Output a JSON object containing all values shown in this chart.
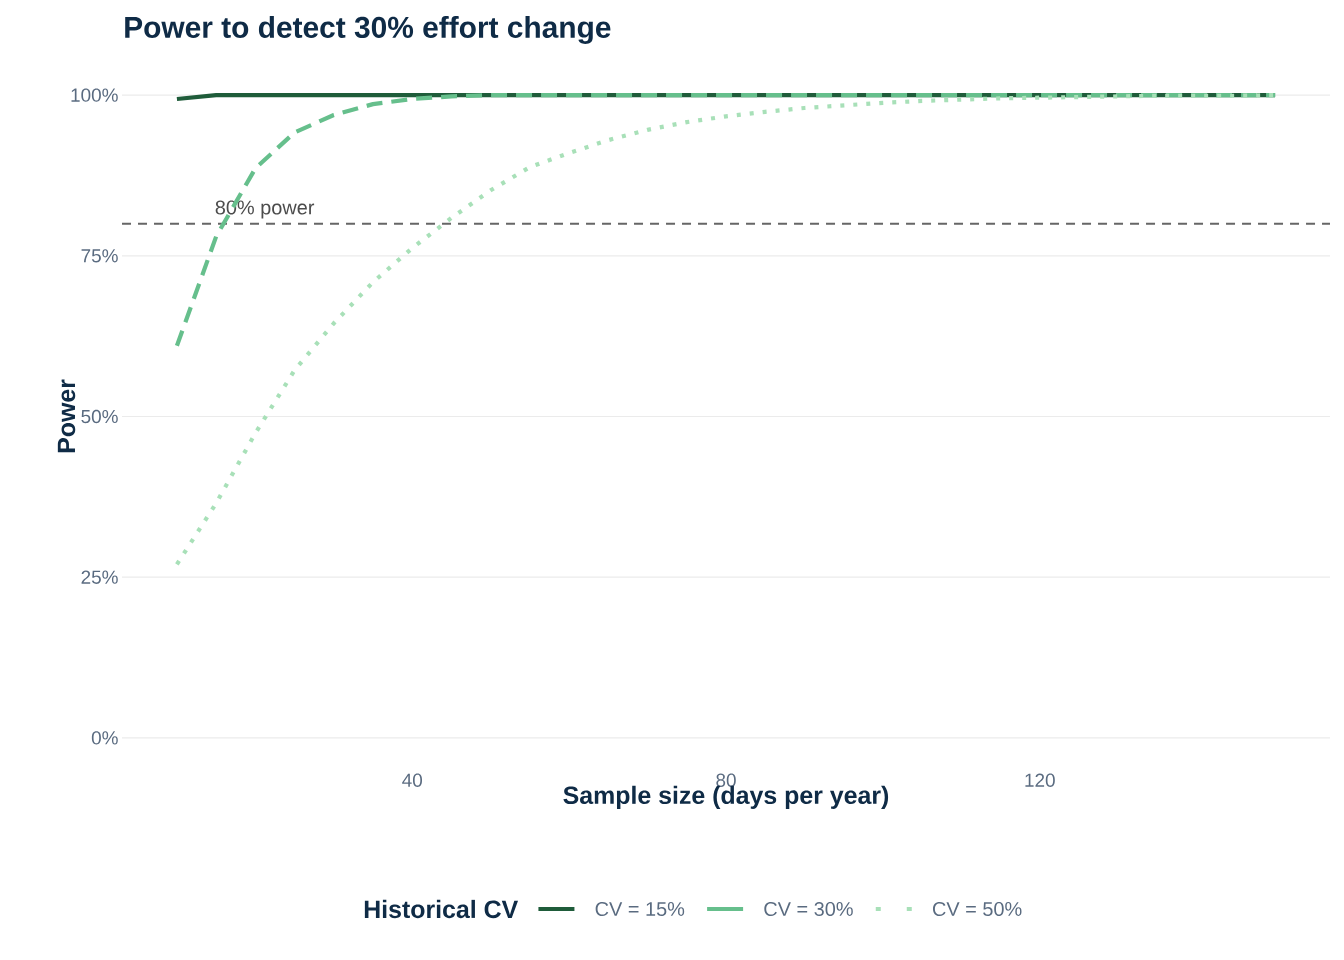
{
  "chart_data": {
    "type": "line",
    "title": "Power to detect 30% effort change",
    "xlabel": "Sample size (days per year)",
    "ylabel": "Power",
    "legend_title": "Historical CV",
    "x": [
      10,
      15,
      20,
      25,
      30,
      35,
      40,
      45,
      50,
      55,
      60,
      65,
      70,
      75,
      80,
      85,
      90,
      95,
      100,
      105,
      110,
      115,
      120,
      125,
      130,
      135,
      140,
      145,
      150
    ],
    "series": [
      {
        "name": "CV = 15%",
        "color": "#1f5c3a",
        "line_style": "solid",
        "values": [
          99.4,
          100,
          100,
          100,
          100,
          100,
          100,
          100,
          100,
          100,
          100,
          100,
          100,
          100,
          100,
          100,
          100,
          100,
          100,
          100,
          100,
          100,
          100,
          100,
          100,
          100,
          100,
          100,
          100
        ]
      },
      {
        "name": "CV = 30%",
        "color": "#66bf8c",
        "line_style": "dashed",
        "values": [
          61,
          78,
          88.6,
          94.2,
          96.9,
          98.6,
          99.4,
          99.8,
          100,
          100,
          100,
          100,
          100,
          100,
          100,
          100,
          100,
          100,
          100,
          100,
          100,
          100,
          100,
          100,
          100,
          100,
          100,
          100,
          100
        ]
      },
      {
        "name": "CV = 50%",
        "color": "#a8e0b8",
        "line_style": "dotted",
        "values": [
          27,
          36.5,
          47.4,
          57.2,
          64.5,
          70.9,
          76.2,
          80.9,
          85.2,
          88.8,
          91,
          93,
          94.6,
          95.8,
          96.7,
          97.4,
          98,
          98.4,
          98.8,
          99.1,
          99.3,
          99.5,
          99.6,
          99.7,
          99.8,
          99.9,
          99.9,
          99.9,
          100
        ]
      }
    ],
    "xlim": [
      3,
      157
    ],
    "ylim": [
      0,
      100
    ],
    "xticks": [
      40,
      80,
      120
    ],
    "yticks": [
      {
        "value": 0,
        "label": "0%"
      },
      {
        "value": 25,
        "label": "25%"
      },
      {
        "value": 50,
        "label": "50%"
      },
      {
        "value": 75,
        "label": "75%"
      },
      {
        "value": 100,
        "label": "100%"
      }
    ],
    "ref_lines": [
      {
        "axis": "y",
        "value": 80,
        "label": "80% power",
        "color": "#666666",
        "line_style": "dashed"
      }
    ],
    "grid": "y",
    "legend": "bottom"
  }
}
